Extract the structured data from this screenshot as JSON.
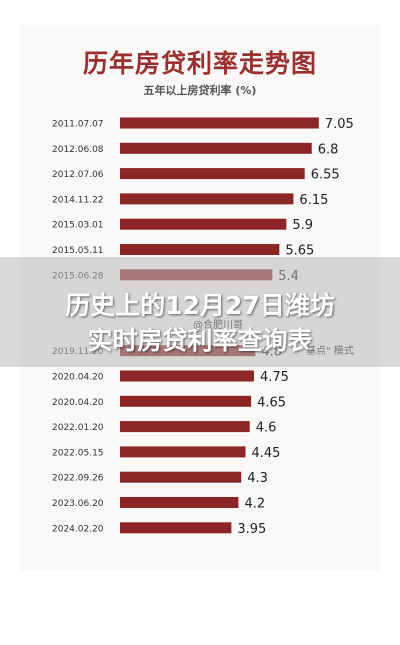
{
  "chart_data": {
    "type": "bar",
    "orientation": "horizontal",
    "title": "历年房贷利率走势图",
    "subtitle": "五年以上房贷利率 (%)",
    "categories": [
      "2011.07.07",
      "2012.06.08",
      "2012.07.06",
      "2014.11.22",
      "2015.03.01",
      "2015.05.11",
      "2015.06.28",
      "",
      "",
      "2019.11.20",
      "2020.04.20",
      "2020.04.20",
      "2022.01.20",
      "2022.05.15",
      "2022.09.26",
      "2023.06.20",
      "2024.02.20"
    ],
    "value_labels": [
      "7.05",
      "6.8",
      "6.55",
      "6.15",
      "5.9",
      "5.65",
      "5.4",
      "",
      "",
      "4.8",
      "4.75",
      "4.65",
      "4.6",
      "4.45",
      "4.3",
      "4.2",
      "3.95"
    ],
    "values": [
      7.05,
      6.8,
      6.55,
      6.15,
      5.9,
      5.65,
      5.4,
      null,
      null,
      4.8,
      4.75,
      4.65,
      4.6,
      4.45,
      4.3,
      4.2,
      3.95
    ],
    "bar_color": "#8c2626",
    "grid": false
  },
  "overlay": {
    "line1": "历史上的12月27日潍坊",
    "line2": "实时房贷利率查询表"
  },
  "watermarks": {
    "weibo": "@合肥川哥",
    "mode": "基点\" 模式"
  }
}
